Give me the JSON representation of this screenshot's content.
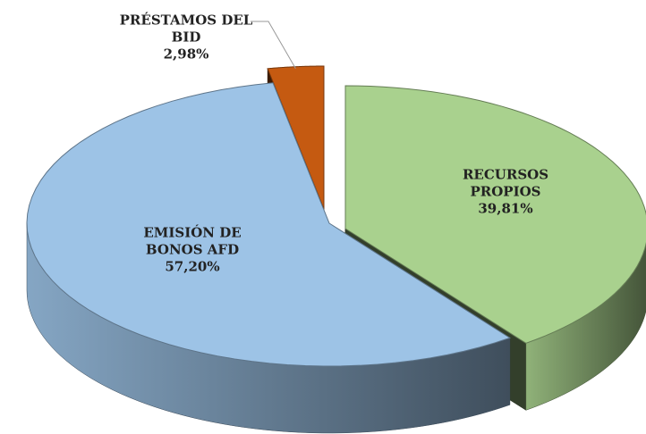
{
  "chart_data": {
    "type": "pie3d",
    "categories": [
      "RECURSOS PROPIOS",
      "EMISIÓN DE BONOS AFD",
      "PRÉSTAMOS DEL BID"
    ],
    "values": [
      39.81,
      57.2,
      2.98
    ],
    "value_labels": [
      "39,81%",
      "57,20%",
      "2,98%"
    ],
    "colors": [
      "#a9d18e",
      "#9dc3e6",
      "#c55a11"
    ]
  }
}
